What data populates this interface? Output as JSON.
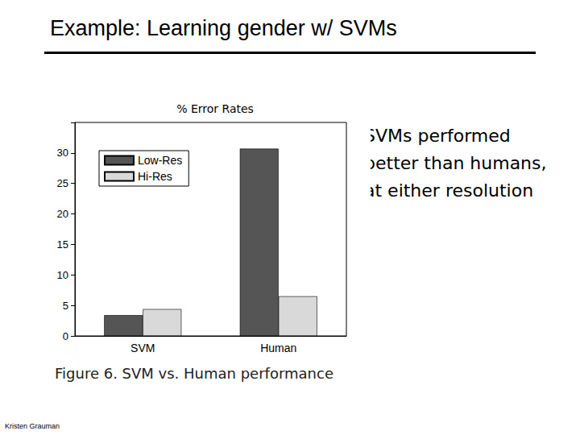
{
  "slide": {
    "title": "Example: Learning gender w/ SVMs",
    "text": "SVMs performed better than humans, at either resolution",
    "caption": "Figure 6. SVM vs. Human performance",
    "credit": "Kristen Grauman"
  },
  "chart_data": {
    "type": "bar",
    "title": "% Error Rates",
    "categories": [
      "SVM",
      "Human"
    ],
    "series": [
      {
        "name": "Low-Res",
        "color": "#555555",
        "values": [
          3.4,
          30.7
        ]
      },
      {
        "name": "Hi-Res",
        "color": "#d9d9d9",
        "values": [
          4.4,
          6.5
        ]
      }
    ],
    "ylim": [
      0,
      35
    ],
    "yticks": [
      0,
      5,
      10,
      15,
      20,
      25,
      30
    ],
    "grid": false,
    "legend": "upper left"
  }
}
